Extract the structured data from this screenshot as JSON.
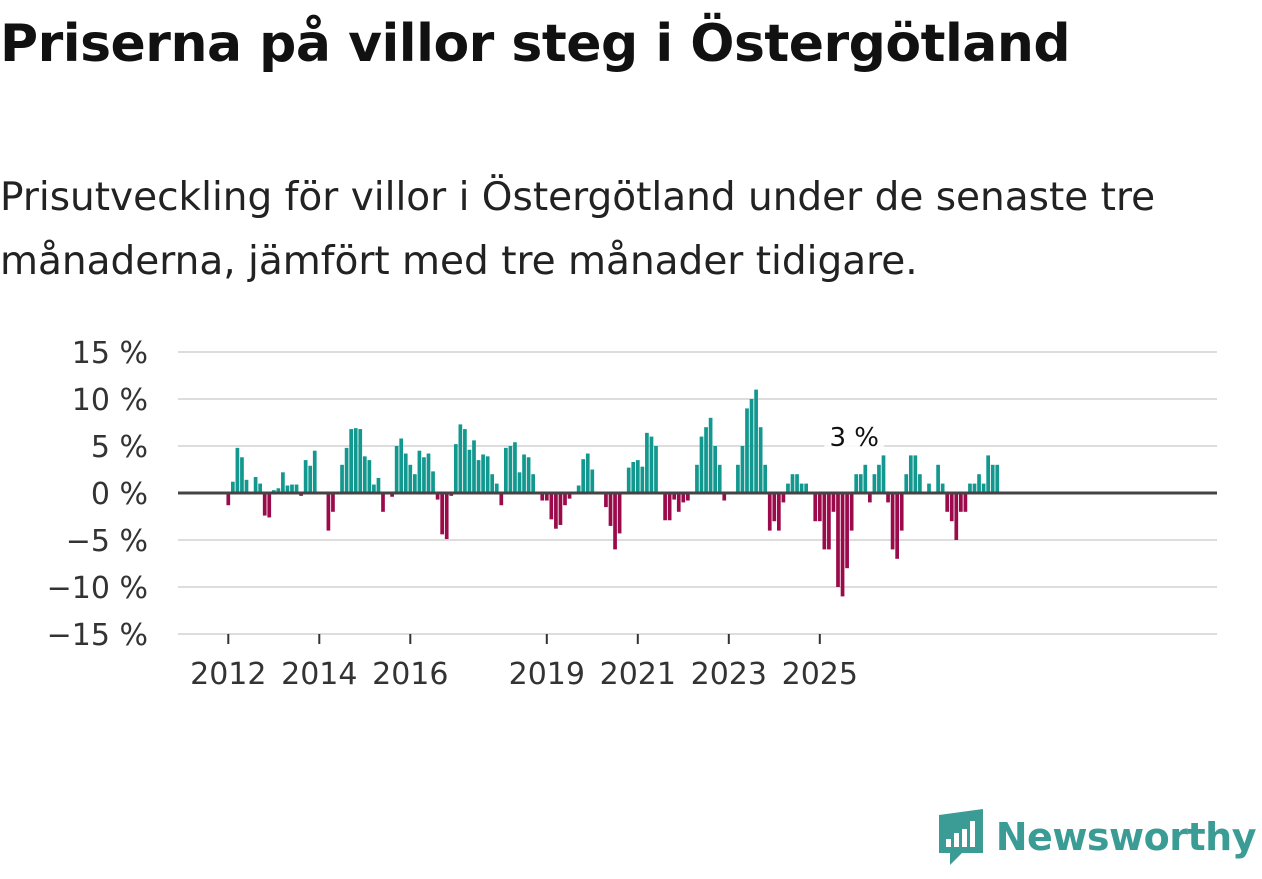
{
  "header": {
    "title": "Priserna på villor steg i Östergötland",
    "subtitle": "Prisutveckling för villor i Östergötland under de senaste tre månaderna, jämfört med tre månader tidigare."
  },
  "brand": {
    "name": "Newsworthy"
  },
  "colors": {
    "positive": "#12988f",
    "negative": "#9b0a4b",
    "grid": "#dddddd",
    "zero": "#444444",
    "brand": "#3b9c95"
  },
  "chart_data": {
    "type": "bar",
    "title": "",
    "xlabel": "",
    "ylabel": "",
    "ylim": [
      -15,
      15
    ],
    "yticks": [
      15,
      10,
      5,
      0,
      -5,
      -10,
      -15
    ],
    "ytick_labels": [
      "15 %",
      "10 %",
      "5 %",
      "0 %",
      "−5 %",
      "−10 %",
      "−15 %"
    ],
    "x_tick_labels": [
      "2012",
      "2014",
      "2016",
      "2019",
      "2021",
      "2023",
      "2025"
    ],
    "x_tick_index": [
      0,
      20,
      40,
      70,
      90,
      110,
      130
    ],
    "start": "2012-01",
    "annotation": {
      "text": "3 %",
      "index": 138
    },
    "values": [
      -1.3,
      1.2,
      4.8,
      3.8,
      1.4,
      0,
      1.7,
      1.0,
      -2.4,
      -2.6,
      0.3,
      0.5,
      2.2,
      0.8,
      0.9,
      0.9,
      -0.3,
      3.5,
      2.9,
      4.5,
      0,
      0,
      -4.0,
      -2.0,
      0,
      3.0,
      4.8,
      6.8,
      6.9,
      6.8,
      3.9,
      3.5,
      0.9,
      1.6,
      -2.0,
      0,
      -0.4,
      5.0,
      5.8,
      4.2,
      3.0,
      2.0,
      4.5,
      3.8,
      4.2,
      2.3,
      -0.7,
      -4.4,
      -4.9,
      -0.3,
      5.2,
      7.3,
      6.8,
      4.6,
      5.6,
      3.5,
      4.1,
      3.9,
      2.0,
      1.0,
      -1.3,
      4.8,
      5.0,
      5.4,
      2.2,
      4.1,
      3.8,
      2.0,
      0,
      -0.8,
      -0.8,
      -2.8,
      -3.8,
      -3.4,
      -1.3,
      -0.6,
      0,
      0.8,
      3.6,
      4.2,
      2.5,
      0,
      0,
      -1.5,
      -3.5,
      -6.0,
      -4.3,
      0,
      2.7,
      3.3,
      3.5,
      2.8,
      6.4,
      6.0,
      5.0,
      0,
      -2.9,
      -2.9,
      -0.7,
      -2.0,
      -1.0,
      -0.8,
      0,
      3.0,
      6.0,
      7.0,
      8.0,
      5.0,
      3.0,
      -0.8,
      0,
      0,
      3.0,
      5.0,
      9.0,
      10.0,
      11.0,
      7.0,
      3.0,
      -4.0,
      -3.0,
      -4.0,
      -1.0,
      1.0,
      2.0,
      2.0,
      1.0,
      1.0,
      0,
      -3.0,
      -3.0,
      -6.0,
      -6.0,
      -2.0,
      -10.0,
      -11.0,
      -8.0,
      -4.0,
      2.0,
      2.0,
      3.0,
      -1.0,
      2.0,
      3.0,
      4.0,
      -1.0,
      -6.0,
      -7.0,
      -4.0,
      2.0,
      4.0,
      4.0,
      2.0,
      0,
      1.0,
      0,
      3.0,
      1.0,
      -2.0,
      -3.0,
      -5.0,
      -2.0,
      -2.0,
      1.0,
      1.0,
      2.0,
      1.0,
      4.0,
      3.0,
      3.0
    ]
  }
}
